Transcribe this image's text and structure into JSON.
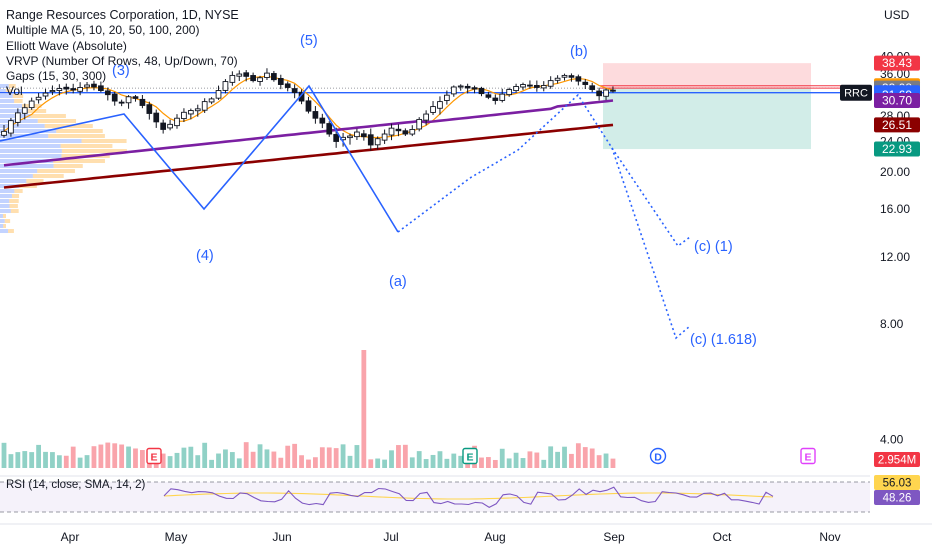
{
  "header": {
    "title": "Range Resources Corporation, 1D, NYSE",
    "indicators": [
      "Multiple MA (5, 10, 20, 50, 100, 200)",
      "Elliott Wave (Absolute)",
      "VRVP (Number Of Rows, 48, Up/Down, 70)",
      "Gaps (15, 30, 300)",
      "Vol"
    ],
    "currency": "USD",
    "ticker": "RRC"
  },
  "chart_data": {
    "type": "candlestick",
    "x_ticks": [
      "Apr",
      "May",
      "Jun",
      "Jul",
      "Aug",
      "Sep",
      "Oct",
      "Nov"
    ],
    "y_ticks": [
      40.0,
      36.0,
      32.0,
      28.0,
      24.0,
      20.0,
      16.0,
      12.0,
      8.0,
      4.0
    ],
    "y_tick_labels": [
      "40.00",
      "36.00",
      "32.00",
      "28.00",
      "24.00",
      "20.00",
      "16.00",
      "12.00",
      "8.00",
      "4.00"
    ],
    "price_close_approx": [
      25.5,
      27.2,
      28.5,
      29.4,
      30.6,
      31.3,
      32.1,
      32.6,
      33.0,
      32.9,
      32.7,
      33.2,
      33.7,
      33.3,
      32.6,
      31.8,
      30.6,
      30.4,
      31.4,
      31.1,
      29.8,
      28.4,
      27.0,
      25.8,
      26.6,
      27.6,
      28.6,
      28.9,
      29.2,
      30.5,
      31.0,
      32.6,
      34.4,
      35.7,
      36.0,
      35.5,
      34.6,
      35.2,
      36.2,
      34.8,
      33.8,
      33.2,
      32.2,
      30.6,
      28.8,
      27.6,
      26.8,
      25.1,
      24.0,
      24.6,
      24.8,
      25.4,
      24.7,
      23.5,
      24.4,
      25.1,
      26.0,
      25.6,
      25.1,
      25.8,
      27.4,
      28.3,
      29.6,
      30.5,
      31.7,
      33.3,
      33.5,
      33.1,
      32.9,
      32.0,
      31.3,
      30.7,
      31.9,
      32.8,
      33.4,
      33.8,
      33.6,
      33.2,
      33.6,
      34.6,
      35.1,
      35.7,
      35.3,
      34.5,
      33.8,
      32.8,
      31.6,
      32.7,
      32.5
    ],
    "price_labels": [
      {
        "value": 38.43,
        "text": "38.43",
        "color": "#f23645"
      },
      {
        "value": 33.56,
        "text": "33.56",
        "color": "#ff9800"
      },
      {
        "value": 33.08,
        "text": "33.08",
        "color": "#787b86"
      },
      {
        "value": 32.17,
        "text": "32.17",
        "color": "#2962ff"
      },
      {
        "value": 31.69,
        "text": "31.69",
        "color": "#2962ff"
      },
      {
        "value": 30.7,
        "text": "30.70",
        "color": "#7b1fa2"
      },
      {
        "value": 26.51,
        "text": "26.51",
        "color": "#8b0000"
      },
      {
        "value": 22.93,
        "text": "22.93",
        "color": "#089981"
      }
    ],
    "volume_label": "2.954M",
    "wave_labels": [
      {
        "text": "(3)",
        "date_index": 19,
        "price": 37.4
      },
      {
        "text": "(5)",
        "date_index": 48,
        "price": 42.0
      },
      {
        "text": "(4)",
        "date_index": 32,
        "price": 21.8
      },
      {
        "text": "(a)",
        "date_index": 62,
        "price": 19.2
      },
      {
        "text": "(b)",
        "date_index": 91,
        "price": 41.5
      },
      {
        "text": "(c) (1)",
        "date_index": 114,
        "price": 22.0
      },
      {
        "text": "(c) (1.618)",
        "date_index": 118,
        "price": 13.7
      }
    ],
    "markers": [
      "E",
      "E",
      "D",
      "E"
    ],
    "rsi": {
      "label": "RSI (14, close, SMA, 14, 2)",
      "value": 48.26,
      "sma": 56.03
    }
  },
  "colors": {
    "up": "#089981",
    "down": "#f23645",
    "wave": "#2962ff",
    "ma_orange": "#ff9800",
    "ma_purple": "#7b1fa2",
    "ma_dark": "#8b0000"
  }
}
